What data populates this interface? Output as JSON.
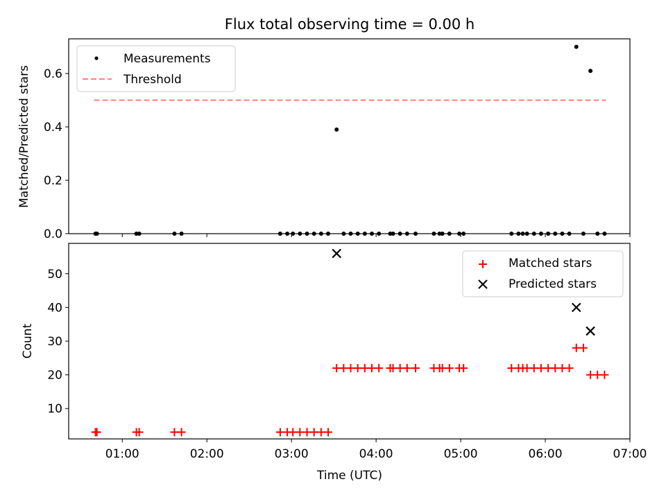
{
  "chart_data": [
    {
      "type": "scatter",
      "title": "Flux total observing time = 0.00 h",
      "xlabel": "",
      "ylabel": "Matched/Predicted stars",
      "xlim": [
        "00:22",
        "07:00"
      ],
      "ylim": [
        0,
        0.73
      ],
      "yticks": [
        0.0,
        0.2,
        0.4,
        0.6
      ],
      "ytick_labels": [
        "0.0",
        "0.2",
        "0.4",
        "0.6"
      ],
      "grid": false,
      "legend_position": "top-left",
      "series": [
        {
          "name": "Measurements",
          "marker": "dot",
          "color": "#000000",
          "points": [
            [
              "00:41",
              0.0
            ],
            [
              "00:42",
              0.0
            ],
            [
              "01:10",
              0.0
            ],
            [
              "01:12",
              0.0
            ],
            [
              "01:37",
              0.0
            ],
            [
              "01:42",
              0.0
            ],
            [
              "02:52",
              0.0
            ],
            [
              "02:57",
              0.0
            ],
            [
              "03:01",
              0.0
            ],
            [
              "03:06",
              0.0
            ],
            [
              "03:11",
              0.0
            ],
            [
              "03:16",
              0.0
            ],
            [
              "03:21",
              0.0
            ],
            [
              "03:26",
              0.0
            ],
            [
              "03:32",
              0.39
            ],
            [
              "03:37",
              0.0
            ],
            [
              "03:42",
              0.0
            ],
            [
              "03:47",
              0.0
            ],
            [
              "03:52",
              0.0
            ],
            [
              "03:57",
              0.0
            ],
            [
              "04:02",
              0.0
            ],
            [
              "04:10",
              0.0
            ],
            [
              "04:12",
              0.0
            ],
            [
              "04:17",
              0.0
            ],
            [
              "04:22",
              0.0
            ],
            [
              "04:28",
              0.0
            ],
            [
              "04:41",
              0.0
            ],
            [
              "04:45",
              0.0
            ],
            [
              "04:47",
              0.0
            ],
            [
              "04:52",
              0.0
            ],
            [
              "04:59",
              0.0
            ],
            [
              "05:02",
              0.0
            ],
            [
              "05:36",
              0.0
            ],
            [
              "05:41",
              0.0
            ],
            [
              "05:44",
              0.0
            ],
            [
              "05:47",
              0.0
            ],
            [
              "05:52",
              0.0
            ],
            [
              "05:57",
              0.0
            ],
            [
              "06:02",
              0.0
            ],
            [
              "06:07",
              0.0
            ],
            [
              "06:12",
              0.0
            ],
            [
              "06:17",
              0.0
            ],
            [
              "06:22",
              0.7
            ],
            [
              "06:27",
              0.0
            ],
            [
              "06:32",
              0.61
            ],
            [
              "06:37",
              0.0
            ],
            [
              "06:42",
              0.0
            ]
          ]
        },
        {
          "name": "Threshold",
          "marker": "dashed-line",
          "color": "#ff8080",
          "points": [
            [
              "00:40",
              0.5
            ],
            [
              "06:43",
              0.5
            ]
          ]
        }
      ]
    },
    {
      "type": "scatter",
      "title": "",
      "xlabel": "Time (UTC)",
      "ylabel": "Count",
      "xlim": [
        "00:22",
        "07:00"
      ],
      "ylim": [
        1,
        59
      ],
      "xticks": [
        "01:00",
        "02:00",
        "03:00",
        "04:00",
        "05:00",
        "06:00",
        "07:00"
      ],
      "yticks": [
        10,
        20,
        30,
        40,
        50
      ],
      "ytick_labels": [
        "10",
        "20",
        "30",
        "40",
        "50"
      ],
      "grid": false,
      "legend_position": "top-right",
      "series": [
        {
          "name": "Matched stars",
          "marker": "plus",
          "color": "#ff0000",
          "points": [
            [
              "00:41",
              3
            ],
            [
              "00:42",
              3
            ],
            [
              "01:10",
              3
            ],
            [
              "01:12",
              3
            ],
            [
              "01:37",
              3
            ],
            [
              "01:42",
              3
            ],
            [
              "02:52",
              3
            ],
            [
              "02:57",
              3
            ],
            [
              "03:01",
              3
            ],
            [
              "03:06",
              3
            ],
            [
              "03:11",
              3
            ],
            [
              "03:16",
              3
            ],
            [
              "03:21",
              3
            ],
            [
              "03:26",
              3
            ],
            [
              "03:32",
              22
            ],
            [
              "03:37",
              22
            ],
            [
              "03:42",
              22
            ],
            [
              "03:47",
              22
            ],
            [
              "03:52",
              22
            ],
            [
              "03:57",
              22
            ],
            [
              "04:02",
              22
            ],
            [
              "04:10",
              22
            ],
            [
              "04:12",
              22
            ],
            [
              "04:17",
              22
            ],
            [
              "04:22",
              22
            ],
            [
              "04:28",
              22
            ],
            [
              "04:41",
              22
            ],
            [
              "04:45",
              22
            ],
            [
              "04:47",
              22
            ],
            [
              "04:52",
              22
            ],
            [
              "04:59",
              22
            ],
            [
              "05:02",
              22
            ],
            [
              "05:36",
              22
            ],
            [
              "05:41",
              22
            ],
            [
              "05:44",
              22
            ],
            [
              "05:47",
              22
            ],
            [
              "05:52",
              22
            ],
            [
              "05:57",
              22
            ],
            [
              "06:02",
              22
            ],
            [
              "06:07",
              22
            ],
            [
              "06:12",
              22
            ],
            [
              "06:17",
              22
            ],
            [
              "06:22",
              28
            ],
            [
              "06:27",
              28
            ],
            [
              "06:32",
              20
            ],
            [
              "06:37",
              20
            ],
            [
              "06:42",
              20
            ]
          ]
        },
        {
          "name": "Predicted stars",
          "marker": "x",
          "color": "#000000",
          "points": [
            [
              "03:32",
              56
            ],
            [
              "06:22",
              40
            ],
            [
              "06:32",
              33
            ]
          ]
        }
      ]
    }
  ]
}
